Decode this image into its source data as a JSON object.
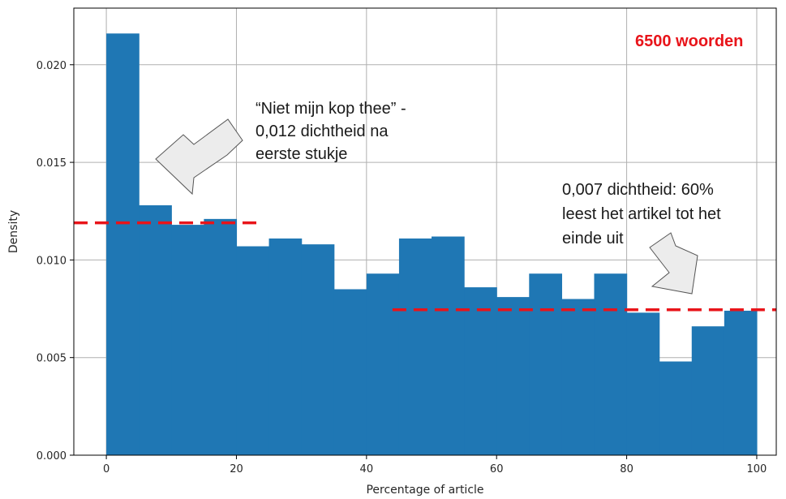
{
  "chart_data": {
    "type": "bar",
    "subtype": "histogram",
    "xlabel": "Percentage of article",
    "ylabel": "Density",
    "xlim": [
      -5,
      103
    ],
    "ylim": [
      0,
      0.0229
    ],
    "grid": true,
    "bar_color": "#1f77b4",
    "x_ticks": [
      "0",
      "20",
      "40",
      "60",
      "80",
      "100"
    ],
    "y_ticks": [
      "0.000",
      "0.005",
      "0.010",
      "0.015",
      "0.020"
    ],
    "bins": [
      {
        "x0": 0,
        "x1": 5,
        "value": 0.0216
      },
      {
        "x0": 5,
        "x1": 10,
        "value": 0.0128
      },
      {
        "x0": 10,
        "x1": 15,
        "value": 0.0118
      },
      {
        "x0": 15,
        "x1": 20,
        "value": 0.0121
      },
      {
        "x0": 20,
        "x1": 25,
        "value": 0.0107
      },
      {
        "x0": 25,
        "x1": 30,
        "value": 0.0111
      },
      {
        "x0": 30,
        "x1": 35,
        "value": 0.0108
      },
      {
        "x0": 35,
        "x1": 40,
        "value": 0.0085
      },
      {
        "x0": 40,
        "x1": 45,
        "value": 0.0093
      },
      {
        "x0": 45,
        "x1": 50,
        "value": 0.0111
      },
      {
        "x0": 50,
        "x1": 55,
        "value": 0.0112
      },
      {
        "x0": 55,
        "x1": 60,
        "value": 0.0086
      },
      {
        "x0": 60,
        "x1": 65,
        "value": 0.0081
      },
      {
        "x0": 65,
        "x1": 70,
        "value": 0.0093
      },
      {
        "x0": 70,
        "x1": 75,
        "value": 0.008
      },
      {
        "x0": 75,
        "x1": 80,
        "value": 0.0093
      },
      {
        "x0": 80,
        "x1": 85,
        "value": 0.0073
      },
      {
        "x0": 85,
        "x1": 90,
        "value": 0.0048
      },
      {
        "x0": 90,
        "x1": 95,
        "value": 0.0066
      },
      {
        "x0": 95,
        "x1": 100,
        "value": 0.0074
      }
    ],
    "reference_lines": [
      {
        "value": 0.0119,
        "x_from": -5,
        "x_to": 24,
        "color": "#e8141a",
        "style": "dashed"
      },
      {
        "value": 0.00745,
        "x_from": 44,
        "x_to": 103,
        "color": "#e8141a",
        "style": "dashed"
      }
    ],
    "annotations": {
      "top": {
        "lines": [
          "“Niet mijn kop thee” -",
          "0,012 dichtheid na",
          "eerste stukje"
        ]
      },
      "right": {
        "lines": [
          "0,007 dichtheid: 60%",
          "leest het artikel tot het",
          "einde uit"
        ]
      },
      "badge": {
        "text": "6500 woorden",
        "color": "#e8141a"
      }
    }
  }
}
